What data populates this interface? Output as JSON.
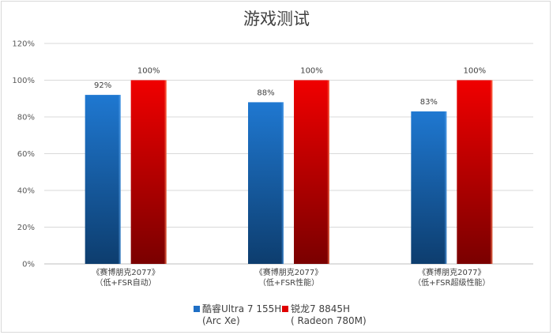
{
  "chart_data": {
    "type": "bar",
    "title": "游戏测试",
    "categories": [
      [
        "《赛博朋克2077》",
        "（低+FSR自动）"
      ],
      [
        "《赛博朋克2077》",
        "（低+FSR性能）"
      ],
      [
        "《赛博朋克2077》",
        "（低+FSR超级性能）"
      ]
    ],
    "series": [
      {
        "name": [
          "酷睿Ultra  7 155H",
          "(Arc Xe)"
        ],
        "values": [
          92,
          88,
          83
        ],
        "labels": [
          "92%",
          "88%",
          "83%"
        ],
        "color": "#1f6fc5"
      },
      {
        "name": [
          "锐龙7 8845H",
          "( Radeon 780M)"
        ],
        "values": [
          100,
          100,
          100
        ],
        "labels": [
          "100%",
          "100%",
          "100%"
        ],
        "color": "#e00000"
      }
    ],
    "ylim": [
      0,
      120
    ],
    "yticks": [
      "0%",
      "20%",
      "40%",
      "60%",
      "80%",
      "100%",
      "120%"
    ],
    "grid": true,
    "legend_position": "bottom"
  }
}
